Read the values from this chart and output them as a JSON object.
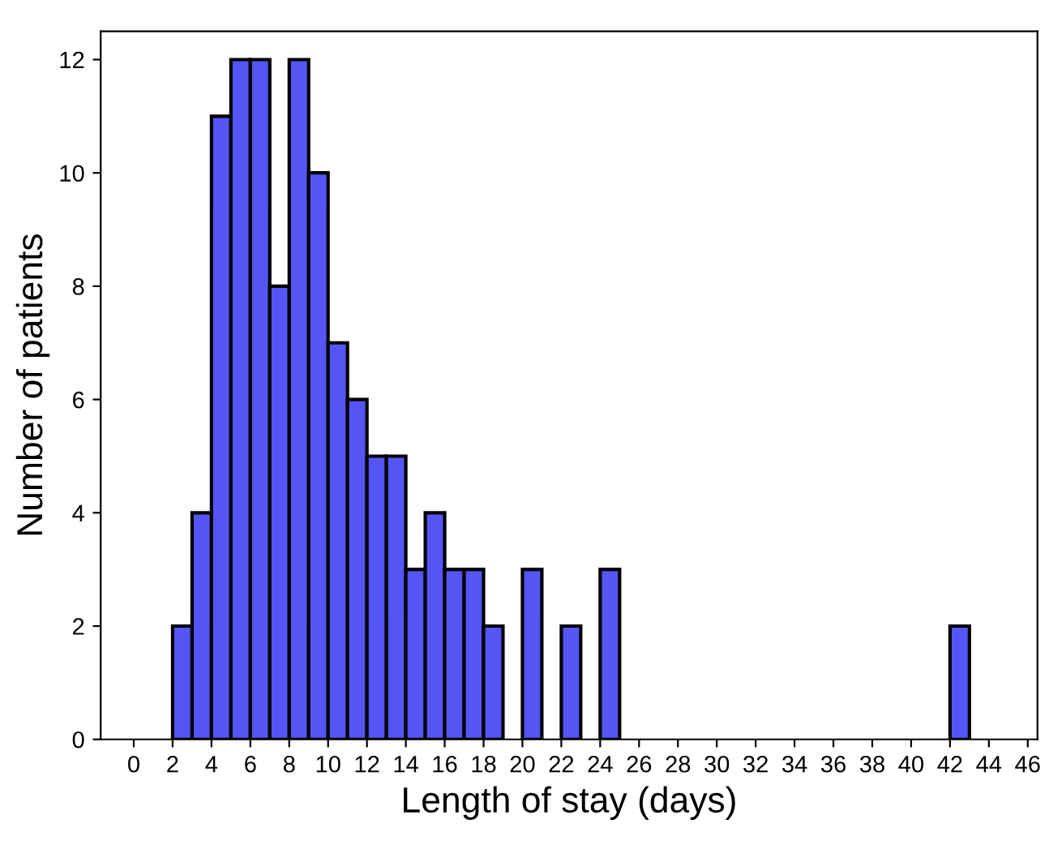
{
  "chart_data": {
    "type": "histogram",
    "xlabel": "Length of stay (days)",
    "ylabel": "Number of patients",
    "color": "#5555f5",
    "bins": [
      2,
      3,
      4,
      5,
      6,
      7,
      8,
      9,
      10,
      11,
      12,
      13,
      14,
      15,
      16,
      17,
      18,
      19,
      20,
      21,
      22,
      23,
      24,
      25,
      26,
      27,
      28,
      29,
      30,
      31,
      32,
      33,
      34,
      35,
      36,
      37,
      38,
      39,
      40,
      41,
      42,
      43
    ],
    "values": [
      2,
      4,
      11,
      12,
      12,
      8,
      12,
      10,
      7,
      6,
      5,
      5,
      3,
      4,
      3,
      3,
      2,
      0,
      3,
      0,
      2,
      0,
      3,
      0,
      0,
      0,
      0,
      0,
      0,
      0,
      0,
      0,
      0,
      0,
      0,
      0,
      0,
      0,
      0,
      0,
      2
    ],
    "xlim": [
      -1.7,
      46.5
    ],
    "ylim": [
      0,
      12.5
    ],
    "xticks": [
      0,
      2,
      4,
      6,
      8,
      10,
      12,
      14,
      16,
      18,
      20,
      22,
      24,
      26,
      28,
      30,
      32,
      34,
      36,
      38,
      40,
      42,
      44,
      46
    ],
    "yticks": [
      0,
      2,
      4,
      6,
      8,
      10,
      12
    ],
    "grid": false,
    "legend": false
  }
}
